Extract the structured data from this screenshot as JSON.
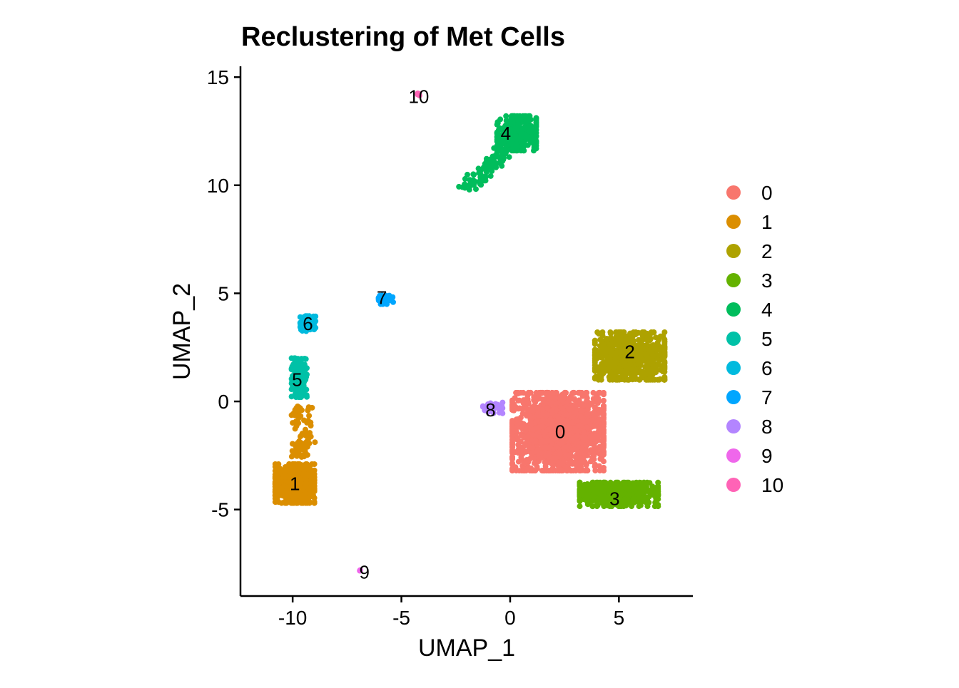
{
  "chart_data": {
    "type": "scatter",
    "title": "Reclustering of Met Cells",
    "xlabel": "UMAP_1",
    "ylabel": "UMAP_2",
    "xlim": [
      -12.4,
      8.4
    ],
    "ylim": [
      -9.0,
      15.5
    ],
    "x_ticks": [
      -10,
      -5,
      0,
      5
    ],
    "y_ticks": [
      -5,
      0,
      5,
      10,
      15
    ],
    "x_tick_labels": [
      "-10",
      "-5",
      "0",
      "5"
    ],
    "y_tick_labels": [
      "-5",
      "0",
      "5",
      "10",
      "15"
    ],
    "grid": false,
    "legend_position": "right",
    "series": [
      {
        "name": "0",
        "color": "#F8766D",
        "center": [
          2.2,
          -1.4
        ],
        "spread": [
          2.1,
          1.8
        ],
        "count": 1500,
        "label_pos": [
          2.3,
          -1.4
        ]
      },
      {
        "name": "1",
        "color": "#DB8E00",
        "center": [
          -9.9,
          -3.8
        ],
        "spread": [
          0.9,
          0.9
        ],
        "count": 650,
        "label_pos": [
          -9.9,
          -3.8
        ]
      },
      {
        "name": "2",
        "color": "#AEA200",
        "center": [
          5.5,
          2.1
        ],
        "spread": [
          1.6,
          1.1
        ],
        "count": 700,
        "label_pos": [
          5.5,
          2.3
        ]
      },
      {
        "name": "3",
        "color": "#64B200",
        "center": [
          5.0,
          -4.3
        ],
        "spread": [
          1.8,
          0.55
        ],
        "count": 550,
        "label_pos": [
          4.8,
          -4.5
        ]
      },
      {
        "name": "4",
        "color": "#00BD5C",
        "center": [
          0.3,
          12.4
        ],
        "spread": [
          0.9,
          0.8
        ],
        "count": 420,
        "label_pos": [
          -0.2,
          12.4
        ]
      },
      {
        "name": "5",
        "color": "#00C1A7",
        "center": [
          -9.7,
          1.1
        ],
        "spread": [
          0.35,
          0.9
        ],
        "count": 180,
        "label_pos": [
          -9.8,
          1.0
        ]
      },
      {
        "name": "6",
        "color": "#00BADE",
        "center": [
          -9.3,
          3.6
        ],
        "spread": [
          0.35,
          0.35
        ],
        "count": 120,
        "label_pos": [
          -9.3,
          3.6
        ]
      },
      {
        "name": "7",
        "color": "#00A6FF",
        "center": [
          -5.7,
          4.7
        ],
        "spread": [
          0.35,
          0.2
        ],
        "count": 40,
        "label_pos": [
          -5.9,
          4.8
        ]
      },
      {
        "name": "8",
        "color": "#B385FF",
        "center": [
          -0.8,
          -0.3
        ],
        "spread": [
          0.45,
          0.25
        ],
        "count": 40,
        "label_pos": [
          -0.9,
          -0.4
        ]
      },
      {
        "name": "9",
        "color": "#EF67EB",
        "center": [
          -6.9,
          -7.8
        ],
        "spread": [
          0.05,
          0.05
        ],
        "count": 3,
        "label_pos": [
          -6.7,
          -7.9
        ]
      },
      {
        "name": "10",
        "color": "#FF63B6",
        "center": [
          -4.2,
          14.2
        ],
        "spread": [
          0.08,
          0.05
        ],
        "count": 4,
        "label_pos": [
          -4.2,
          14.1
        ]
      }
    ]
  }
}
